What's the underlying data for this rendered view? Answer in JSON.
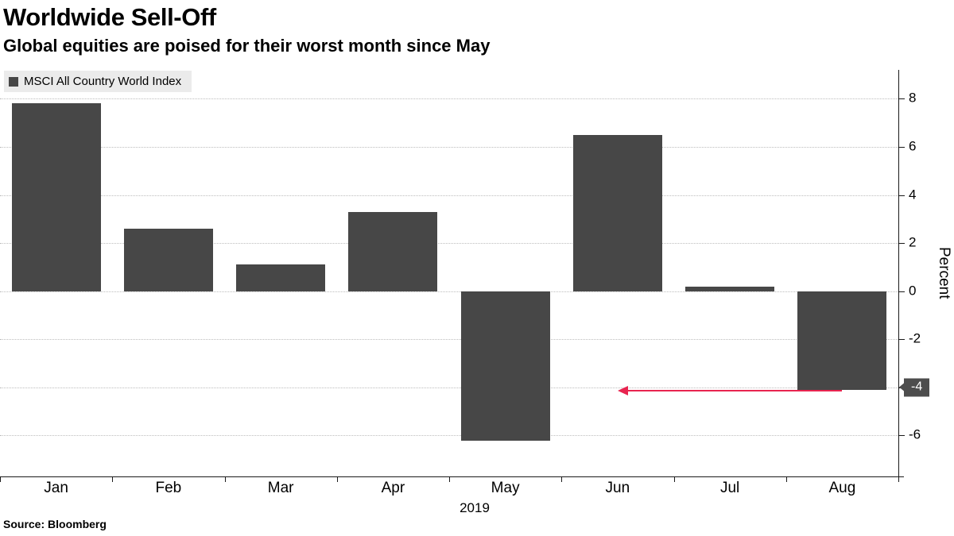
{
  "header": {
    "title": "Worldwide Sell-Off",
    "subtitle": "Global equities are poised for their worst month since May"
  },
  "legend": {
    "label": "MSCI All Country World Index",
    "swatch_color": "#474747"
  },
  "source": "Source: Bloomberg",
  "chart_data": {
    "type": "bar",
    "categories": [
      "Jan",
      "Feb",
      "Mar",
      "Apr",
      "May",
      "Jun",
      "Jul",
      "Aug"
    ],
    "values": [
      7.8,
      2.6,
      1.1,
      3.3,
      -6.2,
      6.5,
      0.2,
      -4.1
    ],
    "series_name": "MSCI All Country World Index",
    "title": "Worldwide Sell-Off",
    "xlabel": "2019",
    "ylabel": "Percent",
    "yticks": [
      8,
      6,
      4,
      2,
      0,
      -2,
      -4,
      -6
    ],
    "ylim": [
      -7.7,
      9.2
    ],
    "grid": "dotted-horizontal",
    "legend_position": "top-left",
    "axis_side": "right",
    "bar_color": "#474747",
    "highlighted_tick": {
      "value": -4,
      "label": "-4",
      "bg": "#4d4d4d",
      "fg": "#ffffff"
    },
    "annotation_arrow": {
      "y": -4.15,
      "from_category": "Aug",
      "to_category": "Jun",
      "direction": "left",
      "color": "#e8244f"
    }
  }
}
